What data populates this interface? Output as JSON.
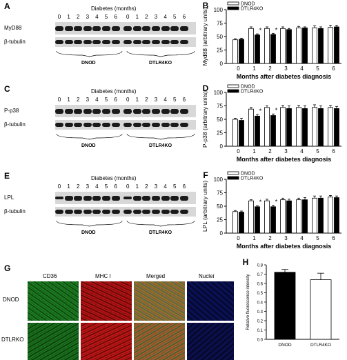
{
  "panels": {
    "A": {
      "letter": "A",
      "xlabel": "Diabetes (months)",
      "lanes": [
        "0",
        "1",
        "2",
        "3",
        "4",
        "5",
        "6",
        "0",
        "1",
        "2",
        "3",
        "4",
        "5",
        "6"
      ],
      "rows": [
        "MyD88",
        "β-tubulin"
      ],
      "groups": [
        "DNOD",
        "DTLR4KO"
      ]
    },
    "C": {
      "letter": "C",
      "xlabel": "Diabetes (months)",
      "lanes": [
        "0",
        "1",
        "2",
        "3",
        "4",
        "5",
        "6",
        "0",
        "1",
        "2",
        "3",
        "4",
        "5",
        "6"
      ],
      "rows": [
        "P-p38",
        "β-tubulin"
      ],
      "groups": [
        "DNOD",
        "DTLR4KO"
      ]
    },
    "E": {
      "letter": "E",
      "xlabel": "Diabetes (months)",
      "lanes": [
        "0",
        "1",
        "2",
        "3",
        "4",
        "5",
        "6",
        "0",
        "1",
        "2",
        "3",
        "4",
        "5",
        "6"
      ],
      "rows": [
        "LPL",
        "β-tubulin"
      ],
      "groups": [
        "DNOD",
        "DTLR4KO"
      ]
    },
    "G": {
      "letter": "G",
      "columns": [
        "CD36",
        "MHC I",
        "Merged",
        "Nuclei"
      ],
      "rows": [
        "DNOD",
        "DTLRKO"
      ]
    }
  },
  "chart_data": [
    {
      "id": "B",
      "letter": "B",
      "type": "bar",
      "categories": [
        "0",
        "1",
        "2",
        "3",
        "4",
        "5",
        "6"
      ],
      "xlabel": "Months after diabetes diagnosis",
      "ylabel": "Myd88 (arbitrary units)",
      "ylim": [
        0,
        100
      ],
      "yticks": [
        0,
        25,
        50,
        75,
        100
      ],
      "legend": "top-left",
      "series": [
        {
          "name": "DNOD",
          "fill": "#ffffff",
          "values": [
            44,
            65,
            65,
            65,
            66,
            66,
            67
          ],
          "err": [
            2,
            3,
            3,
            3,
            3,
            4,
            4
          ]
        },
        {
          "name": "DTLR4KO",
          "fill": "#000000",
          "values": [
            45,
            53,
            54,
            63,
            66,
            65,
            68
          ],
          "err": [
            2,
            2,
            2,
            2,
            2,
            3,
            3
          ]
        }
      ],
      "sig": [
        {
          "category": "1",
          "text": "*"
        },
        {
          "category": "2",
          "text": "*"
        }
      ]
    },
    {
      "id": "D",
      "letter": "D",
      "type": "bar",
      "categories": [
        "0",
        "1",
        "2",
        "3",
        "4",
        "5",
        "6"
      ],
      "xlabel": "Months after diabetes diagnosis",
      "ylabel": "P-p38 (arbitrary units)",
      "ylim": [
        0,
        100
      ],
      "yticks": [
        0,
        25,
        50,
        75,
        100
      ],
      "legend": "top-left",
      "series": [
        {
          "name": "DNOD",
          "fill": "#ffffff",
          "values": [
            50,
            69,
            72,
            72,
            72,
            72,
            72
          ],
          "err": [
            2,
            3,
            3,
            4,
            4,
            5,
            4
          ]
        },
        {
          "name": "DTLR4KO",
          "fill": "#000000",
          "values": [
            48,
            56,
            57,
            70,
            70,
            70,
            70
          ],
          "err": [
            4,
            3,
            3,
            5,
            5,
            5,
            4
          ]
        }
      ],
      "sig": [
        {
          "category": "1",
          "text": "*"
        },
        {
          "category": "2",
          "text": "*"
        }
      ]
    },
    {
      "id": "F",
      "letter": "F",
      "type": "bar",
      "categories": [
        "0",
        "1",
        "2",
        "3",
        "4",
        "5",
        "6"
      ],
      "xlabel": "Months after diabetes diagnosis",
      "ylabel": "LPL (arbitrary units)",
      "ylim": [
        0,
        100
      ],
      "yticks": [
        0,
        25,
        50,
        75,
        100
      ],
      "legend": "top-left",
      "series": [
        {
          "name": "DNOD",
          "fill": "#ffffff",
          "values": [
            40,
            60,
            60,
            62,
            62,
            65,
            67
          ],
          "err": [
            2,
            2,
            3,
            3,
            3,
            4,
            3
          ]
        },
        {
          "name": "DTLR4KO",
          "fill": "#000000",
          "values": [
            39,
            49,
            49,
            60,
            62,
            65,
            66
          ],
          "err": [
            2,
            2,
            3,
            3,
            4,
            4,
            3
          ]
        }
      ],
      "sig": [
        {
          "category": "1",
          "text": "*"
        },
        {
          "category": "2",
          "text": "*"
        }
      ]
    },
    {
      "id": "H",
      "letter": "H",
      "type": "bar",
      "categories": [
        "DNOD",
        "DTLR4KO"
      ],
      "xlabel": "",
      "ylabel": "Relative fluorescence intensity",
      "ylim": [
        0,
        0.8
      ],
      "yticks": [
        0.0,
        0.1,
        0.2,
        0.3,
        0.4,
        0.5,
        0.6,
        0.7,
        0.8
      ],
      "series": [
        {
          "fills": [
            "#000000",
            "#ffffff"
          ],
          "values": [
            0.72,
            0.64
          ],
          "err": [
            0.03,
            0.07
          ]
        }
      ]
    }
  ]
}
